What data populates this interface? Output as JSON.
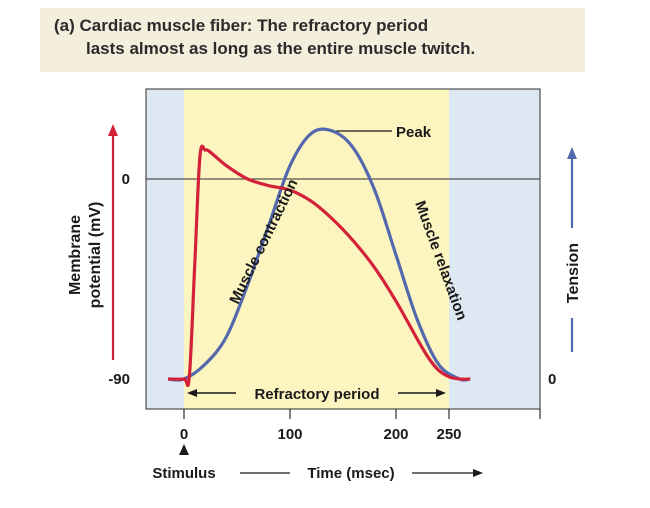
{
  "title": {
    "line1": "(a) Cardiac muscle fiber: The refractory period",
    "line2": "lasts almost as long as the entire muscle twitch."
  },
  "labels": {
    "left_axis_line1": "Membrane",
    "left_axis_line2": "potential (mV)",
    "right_axis": "Tension",
    "x_axis": "Time (msec)",
    "stimulus": "Stimulus",
    "peak": "Peak",
    "contraction": "Muscle contraction",
    "relaxation": "Muscle relaxation",
    "refractory": "Refractory period"
  },
  "colors": {
    "membrane": "#d4213a",
    "tension": "#5468ad",
    "refractory_band": "#fdf5c0",
    "background_band": "#dde8f2"
  },
  "chart_data": {
    "type": "line",
    "title": "(a) Cardiac muscle fiber: The refractory period lasts almost as long as the entire muscle twitch.",
    "xlabel": "Time (msec)",
    "xlim": [
      -15,
      270
    ],
    "x_ticks": [
      0,
      100,
      200,
      250
    ],
    "left_axis": {
      "label": "Membrane potential (mV)",
      "ticks": [
        0,
        -90
      ],
      "ylim": [
        -99,
        20
      ]
    },
    "right_axis": {
      "label": "Tension",
      "ticks": [
        0
      ]
    },
    "refractory_period": [
      0,
      250
    ],
    "series": [
      {
        "name": "Membrane potential",
        "axis": "left",
        "x": [
          -15,
          0,
          5,
          10,
          15,
          20,
          25,
          40,
          60,
          80,
          100,
          120,
          140,
          160,
          180,
          200,
          220,
          230,
          240,
          250,
          260,
          270
        ],
        "y": [
          -90,
          -90,
          -89,
          -40,
          10,
          13,
          12,
          6,
          0,
          -3,
          -5,
          -10,
          -18,
          -28,
          -40,
          -55,
          -72,
          -80,
          -86,
          -89,
          -90,
          -90
        ]
      },
      {
        "name": "Tension",
        "axis": "right",
        "x": [
          -15,
          0,
          20,
          40,
          60,
          80,
          100,
          120,
          140,
          160,
          180,
          200,
          220,
          240,
          260,
          270
        ],
        "y": [
          0,
          0,
          0.06,
          0.17,
          0.38,
          0.62,
          0.86,
          0.99,
          1.0,
          0.93,
          0.76,
          0.5,
          0.24,
          0.06,
          0.0,
          0
        ]
      }
    ]
  }
}
